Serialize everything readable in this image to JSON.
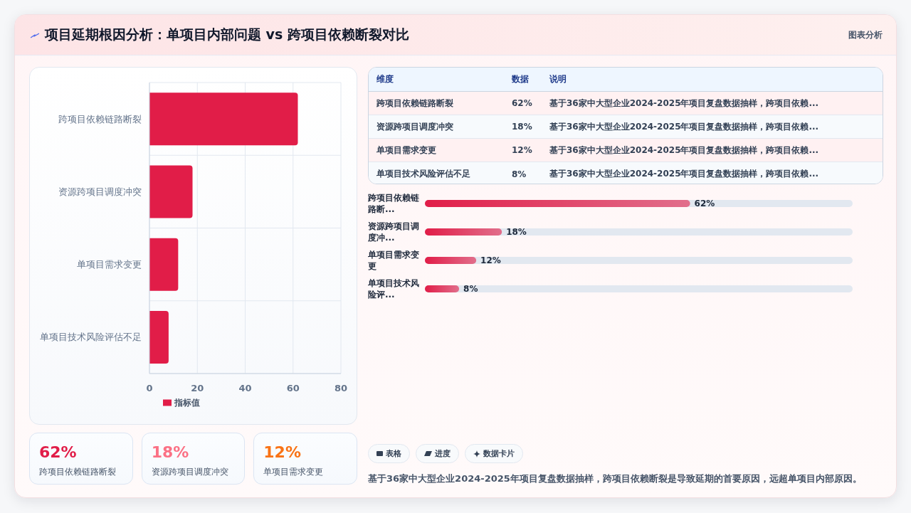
{
  "chart_data": [
    {
      "type": "bar",
      "title": "项目延期根因分析：单项目内部问题 vs 跨项目依赖断裂对比",
      "annotations": [
        "图表分析"
      ],
      "orientation": "horizontal",
      "categories": [
        "跨项目依赖链路断裂",
        "资源跨项目调度冲突",
        "单项目需求变更",
        "单项目技术风险评估不足"
      ],
      "series": [
        {
          "name": "指标值",
          "color": "#e11d48",
          "values": [
            62,
            18,
            12,
            8
          ]
        }
      ],
      "xlim": [
        0,
        80
      ],
      "xticks": [
        0,
        20,
        40,
        60,
        80
      ],
      "grid": true,
      "legend": "bottom"
    },
    {
      "type": "other",
      "categories": [
        "跨项目依赖链路断裂",
        "资源跨项目调度冲突",
        "单项目需求变更",
        "单项目技术风险评估不足"
      ],
      "value_labels": [
        "62%",
        "18%",
        "12%",
        "8%"
      ],
      "annotations": [
        "维度",
        "数据",
        "说明",
        "基于36家中大型企业2024-2025年项目复盘数据抽样，跨项目依赖...",
        "基于36家中大型企业2024-2025年项目复盘数据抽样，跨项目依赖...",
        "基于36家中大型企业2024-2025年项目复盘数据抽样，跨项目依赖...",
        "基于36家中大型企业2024-2025年项目复盘数据抽样，跨项目依赖..."
      ]
    },
    {
      "type": "bar",
      "orientation": "horizontal",
      "categories": [
        "跨项目依赖链路断...",
        "资源跨项目调度冲...",
        "单项目需求变更",
        "单项目技术风险评..."
      ],
      "values": [
        62,
        18,
        12,
        8
      ],
      "value_labels": [
        "62%",
        "18%",
        "12%",
        "8%"
      ],
      "color": "#e11d48",
      "xlim": [
        0,
        100
      ],
      "tick_labels": "y"
    },
    {
      "type": "other",
      "categories": [
        "跨项目依赖链路断裂",
        "资源跨项目调度冲突",
        "单项目需求变更"
      ],
      "value_labels": [
        "62%",
        "18%",
        "12%"
      ]
    },
    {
      "type": "other",
      "annotations": [
        "表格",
        "进度",
        "数据卡片",
        "基于36家中大型企业2024-2025年项目复盘数据抽样，跨项目依赖断裂是导致延期的首要原因，远超单项目内部原因。"
      ]
    }
  ]
}
